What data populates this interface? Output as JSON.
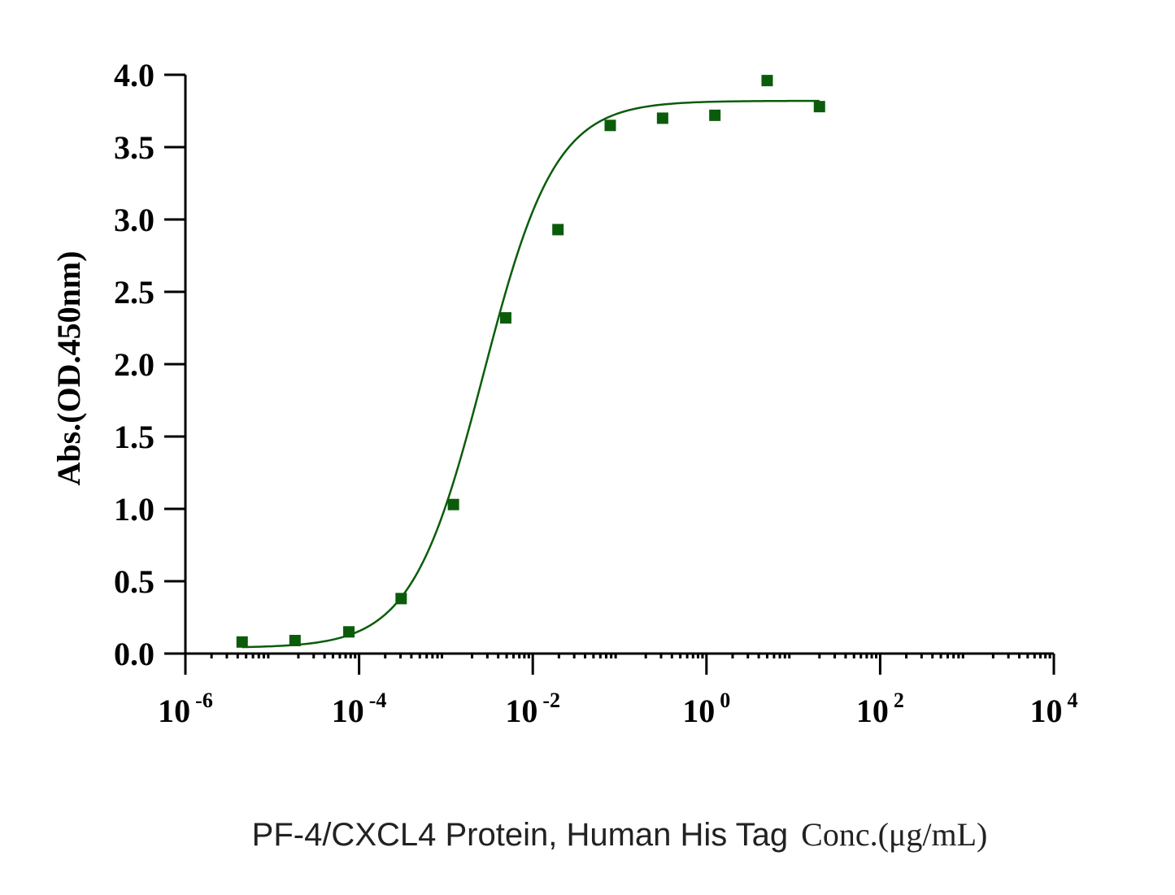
{
  "chart_data": {
    "type": "scatter",
    "title": "",
    "xlabel_main": "PF-4/CXCL4 Protein, Human His Tag",
    "xlabel_unit": "Conc.(μg/mL)",
    "ylabel": "Abs.(OD.450nm)",
    "x_scale": "log",
    "xlim": [
      1e-06,
      10000
    ],
    "ylim": [
      0,
      4
    ],
    "x_ticks": [
      {
        "value": 1e-06,
        "base": "10",
        "exp": "-6"
      },
      {
        "value": 0.0001,
        "base": "10",
        "exp": "-4"
      },
      {
        "value": 0.01,
        "base": "10",
        "exp": "-2"
      },
      {
        "value": 1,
        "base": "10",
        "exp": "0"
      },
      {
        "value": 100,
        "base": "10",
        "exp": "2"
      },
      {
        "value": 10000,
        "base": "10",
        "exp": "4"
      }
    ],
    "y_ticks": [
      {
        "value": 0.0,
        "label": "0.0"
      },
      {
        "value": 0.5,
        "label": "0.5"
      },
      {
        "value": 1.0,
        "label": "1.0"
      },
      {
        "value": 1.5,
        "label": "1.5"
      },
      {
        "value": 2.0,
        "label": "2.0"
      },
      {
        "value": 2.5,
        "label": "2.5"
      },
      {
        "value": 3.0,
        "label": "3.0"
      },
      {
        "value": 3.5,
        "label": "3.5"
      },
      {
        "value": 4.0,
        "label": "4.0"
      }
    ],
    "grid": false,
    "color": "#0a5c0a",
    "series": [
      {
        "x": [
          4.5e-06,
          1.83e-05,
          7.63e-05,
          0.000305,
          0.00122,
          0.00488,
          0.0195,
          0.078,
          0.3125,
          1.25,
          5,
          20
        ],
        "y": [
          0.08,
          0.09,
          0.15,
          0.38,
          1.03,
          2.32,
          2.93,
          3.65,
          3.7,
          3.72,
          3.96,
          3.78
        ]
      }
    ],
    "fit": {
      "model": "4PL",
      "bottom": 0.04,
      "top": 3.82,
      "ec50": 0.0027,
      "hill": 1.05
    }
  }
}
